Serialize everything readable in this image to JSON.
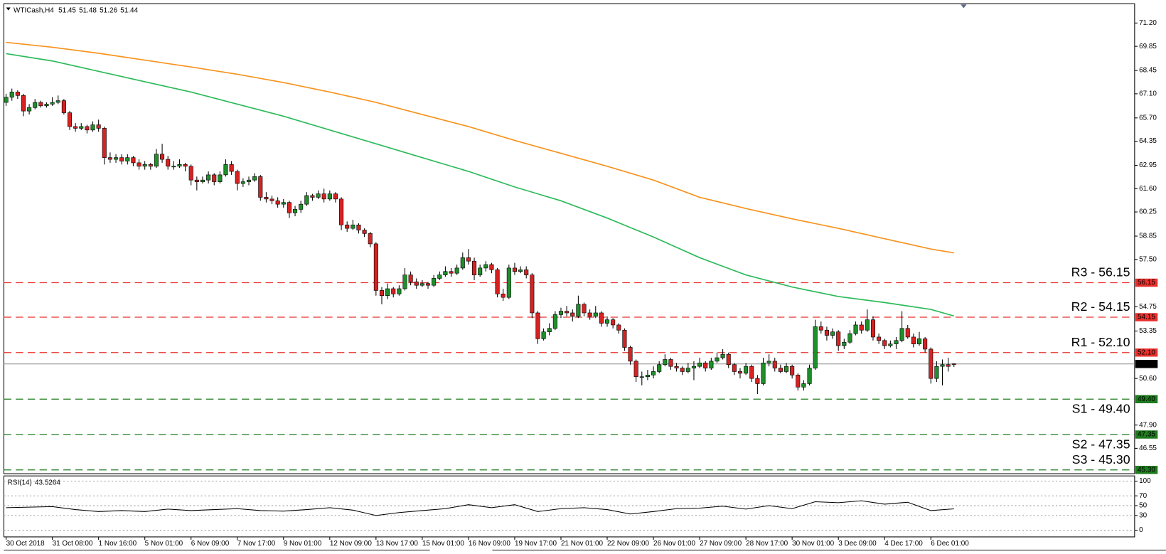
{
  "chart_data": {
    "type": "candlestick",
    "header": {
      "symbol": "WTICash,H4",
      "open": 51.45,
      "high": 51.48,
      "low": 51.26,
      "close": 51.44
    },
    "ylim": [
      45.08,
      72.32
    ],
    "yticks": [
      {
        "value": 71.2,
        "label": "71.20"
      },
      69.85,
      68.45,
      {
        "value": 67.1,
        "label": "67.10"
      },
      {
        "value": 65.7,
        "label": "65.70"
      },
      64.35,
      62.95,
      {
        "value": 61.6,
        "label": "61.60"
      },
      60.25,
      58.85,
      {
        "value": 57.5,
        "label": "57.50"
      },
      54.75,
      53.35,
      {
        "value": 50.6,
        "label": "50.60"
      },
      {
        "value": 47.9,
        "label": "47.90"
      },
      46.55
    ],
    "colors": {
      "up": "#1f8f2a",
      "down": "#d62222"
    },
    "last": 51.44,
    "levels": [
      {
        "label": "R3 - 56.15",
        "value": 56.15,
        "color": "#e8302c"
      },
      {
        "label": "R2 - 54.15",
        "value": 54.15,
        "color": "#e8302c"
      },
      {
        "label": "R1 - 52.10",
        "value": 52.1,
        "value_label": "52.10",
        "color": "#e8302c"
      },
      {
        "label": "S1 - 49.40",
        "value": 49.4,
        "value_label": "49.40",
        "color": "#1e7b1e"
      },
      {
        "label": "S2 - 47.35",
        "value": 47.35,
        "color": "#1e7b1e"
      },
      {
        "label": "S3 - 45.30",
        "value": 45.3,
        "value_label": "45.30",
        "color": "#1e7b1e"
      }
    ],
    "categories": [
      "30 Oct 2018",
      null,
      null,
      null,
      null,
      null,
      null,
      null,
      "31 Oct 08:00",
      null,
      null,
      null,
      null,
      null,
      null,
      null,
      "1 Nov 16:00",
      null,
      null,
      null,
      null,
      null,
      null,
      null,
      "5 Nov 01:00",
      null,
      null,
      null,
      null,
      null,
      null,
      null,
      "6 Nov 09:00",
      null,
      null,
      null,
      null,
      null,
      null,
      null,
      "7 Nov 17:00",
      null,
      null,
      null,
      null,
      null,
      null,
      null,
      "9 Nov 01:00",
      null,
      null,
      null,
      null,
      null,
      null,
      null,
      "12 Nov 09:00",
      null,
      null,
      null,
      null,
      null,
      null,
      null,
      "13 Nov 17:00",
      null,
      null,
      null,
      null,
      null,
      null,
      null,
      "15 Nov 01:00",
      null,
      null,
      null,
      null,
      null,
      null,
      null,
      "16 Nov 09:00",
      null,
      null,
      null,
      null,
      null,
      null,
      null,
      "19 Nov 17:00",
      null,
      null,
      null,
      null,
      null,
      null,
      null,
      "21 Nov 01:00",
      null,
      null,
      null,
      null,
      null,
      null,
      null,
      "22 Nov 09:00",
      null,
      null,
      null,
      null,
      null,
      null,
      null,
      "26 Nov 01:00",
      null,
      null,
      null,
      null,
      null,
      null,
      null,
      "27 Nov 09:00",
      null,
      null,
      null,
      null,
      null,
      null,
      null,
      "28 Nov 17:00",
      null,
      null,
      null,
      null,
      null,
      null,
      null,
      "30 Nov 01:00",
      null,
      null,
      null,
      null,
      null,
      null,
      null,
      "3 Dec 09:00",
      null,
      null,
      null,
      null,
      null,
      null,
      null,
      "4 Dec 17:00",
      null,
      null,
      null,
      null,
      null,
      null,
      null,
      "6 Dec 01:00",
      null,
      null,
      null,
      null
    ],
    "candles": [
      [
        66.6,
        67.1,
        66.4,
        66.9
      ],
      [
        66.9,
        67.4,
        66.7,
        67.2
      ],
      [
        67.2,
        67.3,
        66.8,
        67.0
      ],
      [
        67.0,
        67.1,
        65.8,
        66.1
      ],
      [
        66.1,
        66.5,
        65.9,
        66.3
      ],
      [
        66.3,
        66.8,
        66.2,
        66.6
      ],
      [
        66.6,
        66.7,
        66.3,
        66.4
      ],
      [
        66.4,
        66.6,
        66.3,
        66.5
      ],
      [
        66.5,
        66.9,
        66.4,
        66.6
      ],
      [
        66.6,
        67.0,
        66.5,
        66.7
      ],
      [
        66.7,
        66.8,
        65.9,
        66.0
      ],
      [
        66.0,
        66.1,
        65.0,
        65.2
      ],
      [
        65.2,
        65.4,
        64.9,
        65.1
      ],
      [
        65.1,
        65.4,
        65.0,
        65.2
      ],
      [
        65.2,
        65.3,
        64.8,
        65.0
      ],
      [
        65.0,
        65.5,
        64.9,
        65.3
      ],
      [
        65.3,
        65.6,
        64.9,
        65.1
      ],
      [
        65.1,
        65.2,
        63.0,
        63.4
      ],
      [
        63.4,
        63.7,
        63.1,
        63.3
      ],
      [
        63.3,
        63.6,
        63.1,
        63.4
      ],
      [
        63.4,
        63.6,
        63.0,
        63.2
      ],
      [
        63.2,
        63.6,
        63.0,
        63.4
      ],
      [
        63.4,
        63.5,
        62.9,
        63.1
      ],
      [
        63.1,
        63.3,
        62.7,
        62.9
      ],
      [
        62.9,
        63.2,
        62.7,
        63.0
      ],
      [
        63.0,
        63.1,
        62.7,
        62.9
      ],
      [
        62.9,
        63.9,
        62.8,
        63.6
      ],
      [
        63.6,
        64.2,
        63.1,
        63.3
      ],
      [
        63.3,
        63.5,
        62.7,
        62.9
      ],
      [
        62.9,
        63.2,
        62.7,
        62.9
      ],
      [
        62.9,
        63.3,
        62.8,
        63.0
      ],
      [
        63.0,
        63.1,
        62.6,
        62.9
      ],
      [
        62.9,
        63.0,
        61.8,
        62.1
      ],
      [
        62.1,
        62.3,
        61.5,
        62.0
      ],
      [
        62.0,
        62.3,
        61.9,
        62.1
      ],
      [
        62.1,
        62.6,
        61.9,
        62.4
      ],
      [
        62.4,
        62.5,
        61.8,
        62.0
      ],
      [
        62.0,
        62.6,
        61.9,
        62.4
      ],
      [
        62.4,
        63.3,
        62.3,
        63.0
      ],
      [
        63.0,
        63.2,
        62.4,
        62.6
      ],
      [
        62.6,
        62.7,
        61.5,
        61.9
      ],
      [
        61.9,
        62.2,
        61.7,
        62.0
      ],
      [
        62.0,
        62.3,
        61.8,
        62.1
      ],
      [
        62.1,
        62.5,
        62.0,
        62.3
      ],
      [
        62.3,
        62.4,
        60.9,
        61.1
      ],
      [
        61.1,
        61.4,
        60.8,
        61.0
      ],
      [
        61.0,
        61.2,
        60.7,
        60.9
      ],
      [
        60.9,
        61.1,
        60.5,
        60.7
      ],
      [
        60.7,
        61.0,
        60.5,
        60.8
      ],
      [
        60.8,
        60.9,
        59.9,
        60.2
      ],
      [
        60.2,
        60.6,
        60.0,
        60.4
      ],
      [
        60.4,
        60.9,
        60.2,
        60.7
      ],
      [
        60.7,
        61.4,
        60.6,
        61.2
      ],
      [
        61.2,
        61.3,
        60.9,
        61.1
      ],
      [
        61.1,
        61.5,
        61.0,
        61.3
      ],
      [
        61.3,
        61.6,
        60.8,
        61.0
      ],
      [
        61.0,
        61.5,
        60.9,
        61.3
      ],
      [
        61.3,
        61.4,
        60.8,
        61.0
      ],
      [
        61.0,
        61.1,
        59.2,
        59.5
      ],
      [
        59.5,
        59.7,
        59.1,
        59.3
      ],
      [
        59.3,
        59.8,
        59.2,
        59.5
      ],
      [
        59.5,
        59.6,
        59.0,
        59.2
      ],
      [
        59.2,
        59.3,
        58.8,
        59.0
      ],
      [
        59.0,
        59.1,
        58.2,
        58.4
      ],
      [
        58.4,
        58.5,
        55.4,
        55.7
      ],
      [
        55.7,
        55.9,
        54.9,
        55.4
      ],
      [
        55.4,
        56.1,
        55.2,
        55.8
      ],
      [
        55.8,
        55.9,
        55.3,
        55.5
      ],
      [
        55.5,
        56.0,
        55.4,
        55.8
      ],
      [
        55.8,
        57.0,
        55.7,
        56.6
      ],
      [
        56.6,
        56.8,
        56.0,
        56.2
      ],
      [
        56.2,
        56.4,
        55.8,
        56.0
      ],
      [
        56.0,
        56.3,
        55.9,
        56.1
      ],
      [
        56.1,
        56.2,
        55.8,
        56.0
      ],
      [
        56.0,
        56.6,
        55.9,
        56.4
      ],
      [
        56.4,
        56.8,
        56.3,
        56.6
      ],
      [
        56.6,
        57.1,
        56.5,
        56.8
      ],
      [
        56.8,
        57.0,
        56.5,
        56.7
      ],
      [
        56.7,
        57.2,
        56.6,
        57.0
      ],
      [
        57.0,
        57.9,
        56.9,
        57.6
      ],
      [
        57.6,
        58.1,
        57.2,
        57.4
      ],
      [
        57.4,
        57.6,
        56.3,
        56.6
      ],
      [
        56.6,
        57.2,
        56.5,
        57.0
      ],
      [
        57.0,
        57.4,
        56.8,
        57.2
      ],
      [
        57.2,
        57.3,
        56.7,
        56.9
      ],
      [
        56.9,
        57.0,
        55.3,
        55.5
      ],
      [
        55.5,
        55.8,
        55.1,
        55.3
      ],
      [
        55.3,
        57.2,
        55.2,
        57.0
      ],
      [
        57.0,
        57.3,
        56.6,
        56.8
      ],
      [
        56.8,
        57.1,
        56.7,
        56.9
      ],
      [
        56.9,
        57.1,
        56.4,
        56.6
      ],
      [
        56.6,
        56.7,
        54.1,
        54.4
      ],
      [
        54.4,
        54.5,
        52.6,
        52.9
      ],
      [
        52.9,
        53.5,
        52.8,
        53.3
      ],
      [
        53.3,
        53.8,
        53.1,
        53.5
      ],
      [
        53.5,
        54.5,
        53.4,
        54.3
      ],
      [
        54.3,
        54.7,
        54.1,
        54.5
      ],
      [
        54.5,
        54.8,
        54.2,
        54.4
      ],
      [
        54.4,
        54.6,
        53.9,
        54.2
      ],
      [
        54.2,
        55.4,
        54.1,
        54.9
      ],
      [
        54.9,
        55.0,
        54.2,
        54.4
      ],
      [
        54.4,
        54.6,
        54.0,
        54.2
      ],
      [
        54.2,
        54.8,
        54.1,
        54.4
      ],
      [
        54.4,
        54.5,
        53.6,
        53.8
      ],
      [
        53.8,
        54.2,
        53.6,
        54.0
      ],
      [
        54.0,
        54.1,
        53.5,
        53.7
      ],
      [
        53.7,
        53.8,
        53.2,
        53.4
      ],
      [
        53.4,
        53.5,
        52.2,
        52.4
      ],
      [
        52.4,
        52.5,
        51.4,
        51.6
      ],
      [
        51.6,
        51.7,
        50.4,
        50.7
      ],
      [
        50.7,
        51.0,
        50.2,
        50.7
      ],
      [
        50.7,
        51.1,
        50.5,
        50.8
      ],
      [
        50.8,
        51.3,
        50.6,
        51.0
      ],
      [
        51.0,
        51.6,
        50.9,
        51.4
      ],
      [
        51.4,
        52.0,
        51.3,
        51.7
      ],
      [
        51.7,
        51.8,
        51.1,
        51.3
      ],
      [
        51.3,
        51.5,
        51.0,
        51.2
      ],
      [
        51.2,
        51.3,
        50.8,
        51.0
      ],
      [
        51.0,
        51.5,
        50.9,
        51.2
      ],
      [
        51.2,
        51.6,
        50.5,
        51.3
      ],
      [
        51.3,
        51.8,
        51.2,
        51.5
      ],
      [
        51.5,
        51.6,
        51.0,
        51.2
      ],
      [
        51.2,
        51.8,
        51.1,
        51.6
      ],
      [
        51.6,
        52.1,
        51.5,
        51.8
      ],
      [
        51.8,
        52.3,
        51.7,
        52.0
      ],
      [
        52.0,
        52.1,
        51.2,
        51.4
      ],
      [
        51.4,
        51.5,
        50.8,
        51.0
      ],
      [
        51.0,
        51.2,
        50.6,
        50.9
      ],
      [
        50.9,
        51.5,
        50.8,
        51.3
      ],
      [
        51.3,
        51.4,
        50.4,
        50.6
      ],
      [
        50.6,
        50.8,
        49.7,
        50.3
      ],
      [
        50.3,
        51.8,
        50.2,
        51.5
      ],
      [
        51.5,
        52.0,
        51.3,
        51.6
      ],
      [
        51.6,
        51.8,
        51.0,
        51.2
      ],
      [
        51.2,
        51.4,
        50.9,
        51.0
      ],
      [
        51.0,
        51.5,
        50.9,
        51.3
      ],
      [
        51.3,
        51.4,
        50.6,
        50.8
      ],
      [
        50.8,
        50.9,
        49.9,
        50.1
      ],
      [
        50.1,
        50.5,
        49.9,
        50.3
      ],
      [
        50.3,
        51.4,
        50.2,
        51.2
      ],
      [
        51.2,
        54.0,
        51.1,
        53.6
      ],
      [
        53.6,
        53.9,
        53.2,
        53.4
      ],
      [
        53.4,
        53.6,
        52.8,
        53.1
      ],
      [
        53.1,
        53.5,
        52.9,
        53.3
      ],
      [
        53.3,
        53.4,
        52.2,
        52.5
      ],
      [
        52.5,
        52.9,
        52.3,
        52.7
      ],
      [
        52.7,
        53.4,
        52.6,
        53.2
      ],
      [
        53.2,
        53.9,
        53.1,
        53.7
      ],
      [
        53.7,
        53.9,
        53.2,
        53.4
      ],
      [
        53.4,
        54.6,
        53.3,
        54.0
      ],
      [
        54.0,
        54.2,
        52.8,
        53.0
      ],
      [
        53.0,
        53.2,
        52.6,
        52.8
      ],
      [
        52.8,
        52.9,
        52.3,
        52.5
      ],
      [
        52.5,
        52.8,
        52.4,
        52.6
      ],
      [
        52.6,
        53.0,
        52.3,
        52.8
      ],
      [
        52.8,
        54.5,
        52.7,
        53.5
      ],
      [
        53.5,
        53.7,
        52.9,
        53.0
      ],
      [
        53.0,
        53.2,
        52.4,
        52.6
      ],
      [
        52.6,
        53.3,
        52.5,
        52.9
      ],
      [
        52.9,
        53.0,
        52.1,
        52.3
      ],
      [
        52.3,
        52.4,
        50.3,
        50.6
      ],
      [
        50.6,
        51.6,
        50.4,
        51.3
      ],
      [
        51.3,
        51.7,
        50.2,
        51.4
      ],
      [
        51.4,
        51.8,
        51.0,
        51.3
      ],
      [
        51.45,
        51.48,
        51.26,
        51.44
      ]
    ],
    "moving_averages": [
      {
        "color": "#f7931e",
        "x": [
          0,
          8,
          16,
          24,
          32,
          40,
          48,
          56,
          64,
          72,
          80,
          88,
          96,
          104,
          112,
          120,
          128,
          136,
          144,
          152,
          160,
          164
        ],
        "values": [
          70.08,
          69.8,
          69.45,
          69.05,
          68.65,
          68.23,
          67.75,
          67.2,
          66.6,
          65.9,
          65.2,
          64.4,
          63.65,
          62.9,
          62.1,
          61.1,
          60.45,
          59.85,
          59.3,
          58.7,
          58.1,
          57.88
        ]
      },
      {
        "color": "#2dba5a",
        "x": [
          0,
          8,
          16,
          24,
          32,
          40,
          48,
          56,
          64,
          72,
          80,
          88,
          96,
          104,
          112,
          120,
          128,
          136,
          144,
          152,
          160,
          164
        ],
        "values": [
          69.43,
          69.0,
          68.4,
          67.8,
          67.2,
          66.5,
          65.8,
          65.0,
          64.2,
          63.4,
          62.6,
          61.7,
          60.9,
          59.9,
          58.8,
          57.6,
          56.6,
          55.9,
          55.35,
          55.0,
          54.6,
          54.22
        ]
      }
    ],
    "rsi": {
      "label": "RSI(14)",
      "value": 43.5264,
      "color": "#000000",
      "ylim": [
        -13.6,
        110.6
      ],
      "yticks": [
        100,
        70,
        50,
        30,
        0
      ],
      "x": [
        0,
        4,
        8,
        12,
        16,
        20,
        24,
        28,
        32,
        36,
        40,
        44,
        48,
        52,
        56,
        60,
        64,
        68,
        72,
        76,
        80,
        84,
        88,
        92,
        96,
        100,
        104,
        108,
        112,
        116,
        120,
        124,
        128,
        132,
        136,
        140,
        144,
        148,
        152,
        156,
        160,
        164
      ],
      "values": [
        46,
        47,
        48,
        42,
        38,
        40,
        38,
        43,
        40,
        42,
        44,
        40,
        39,
        42,
        46,
        41,
        30,
        36,
        40,
        44,
        52,
        46,
        52,
        38,
        44,
        46,
        42,
        33,
        38,
        44,
        45,
        49,
        43,
        50,
        44,
        58,
        56,
        60,
        53,
        57,
        40,
        43.5264
      ]
    }
  }
}
